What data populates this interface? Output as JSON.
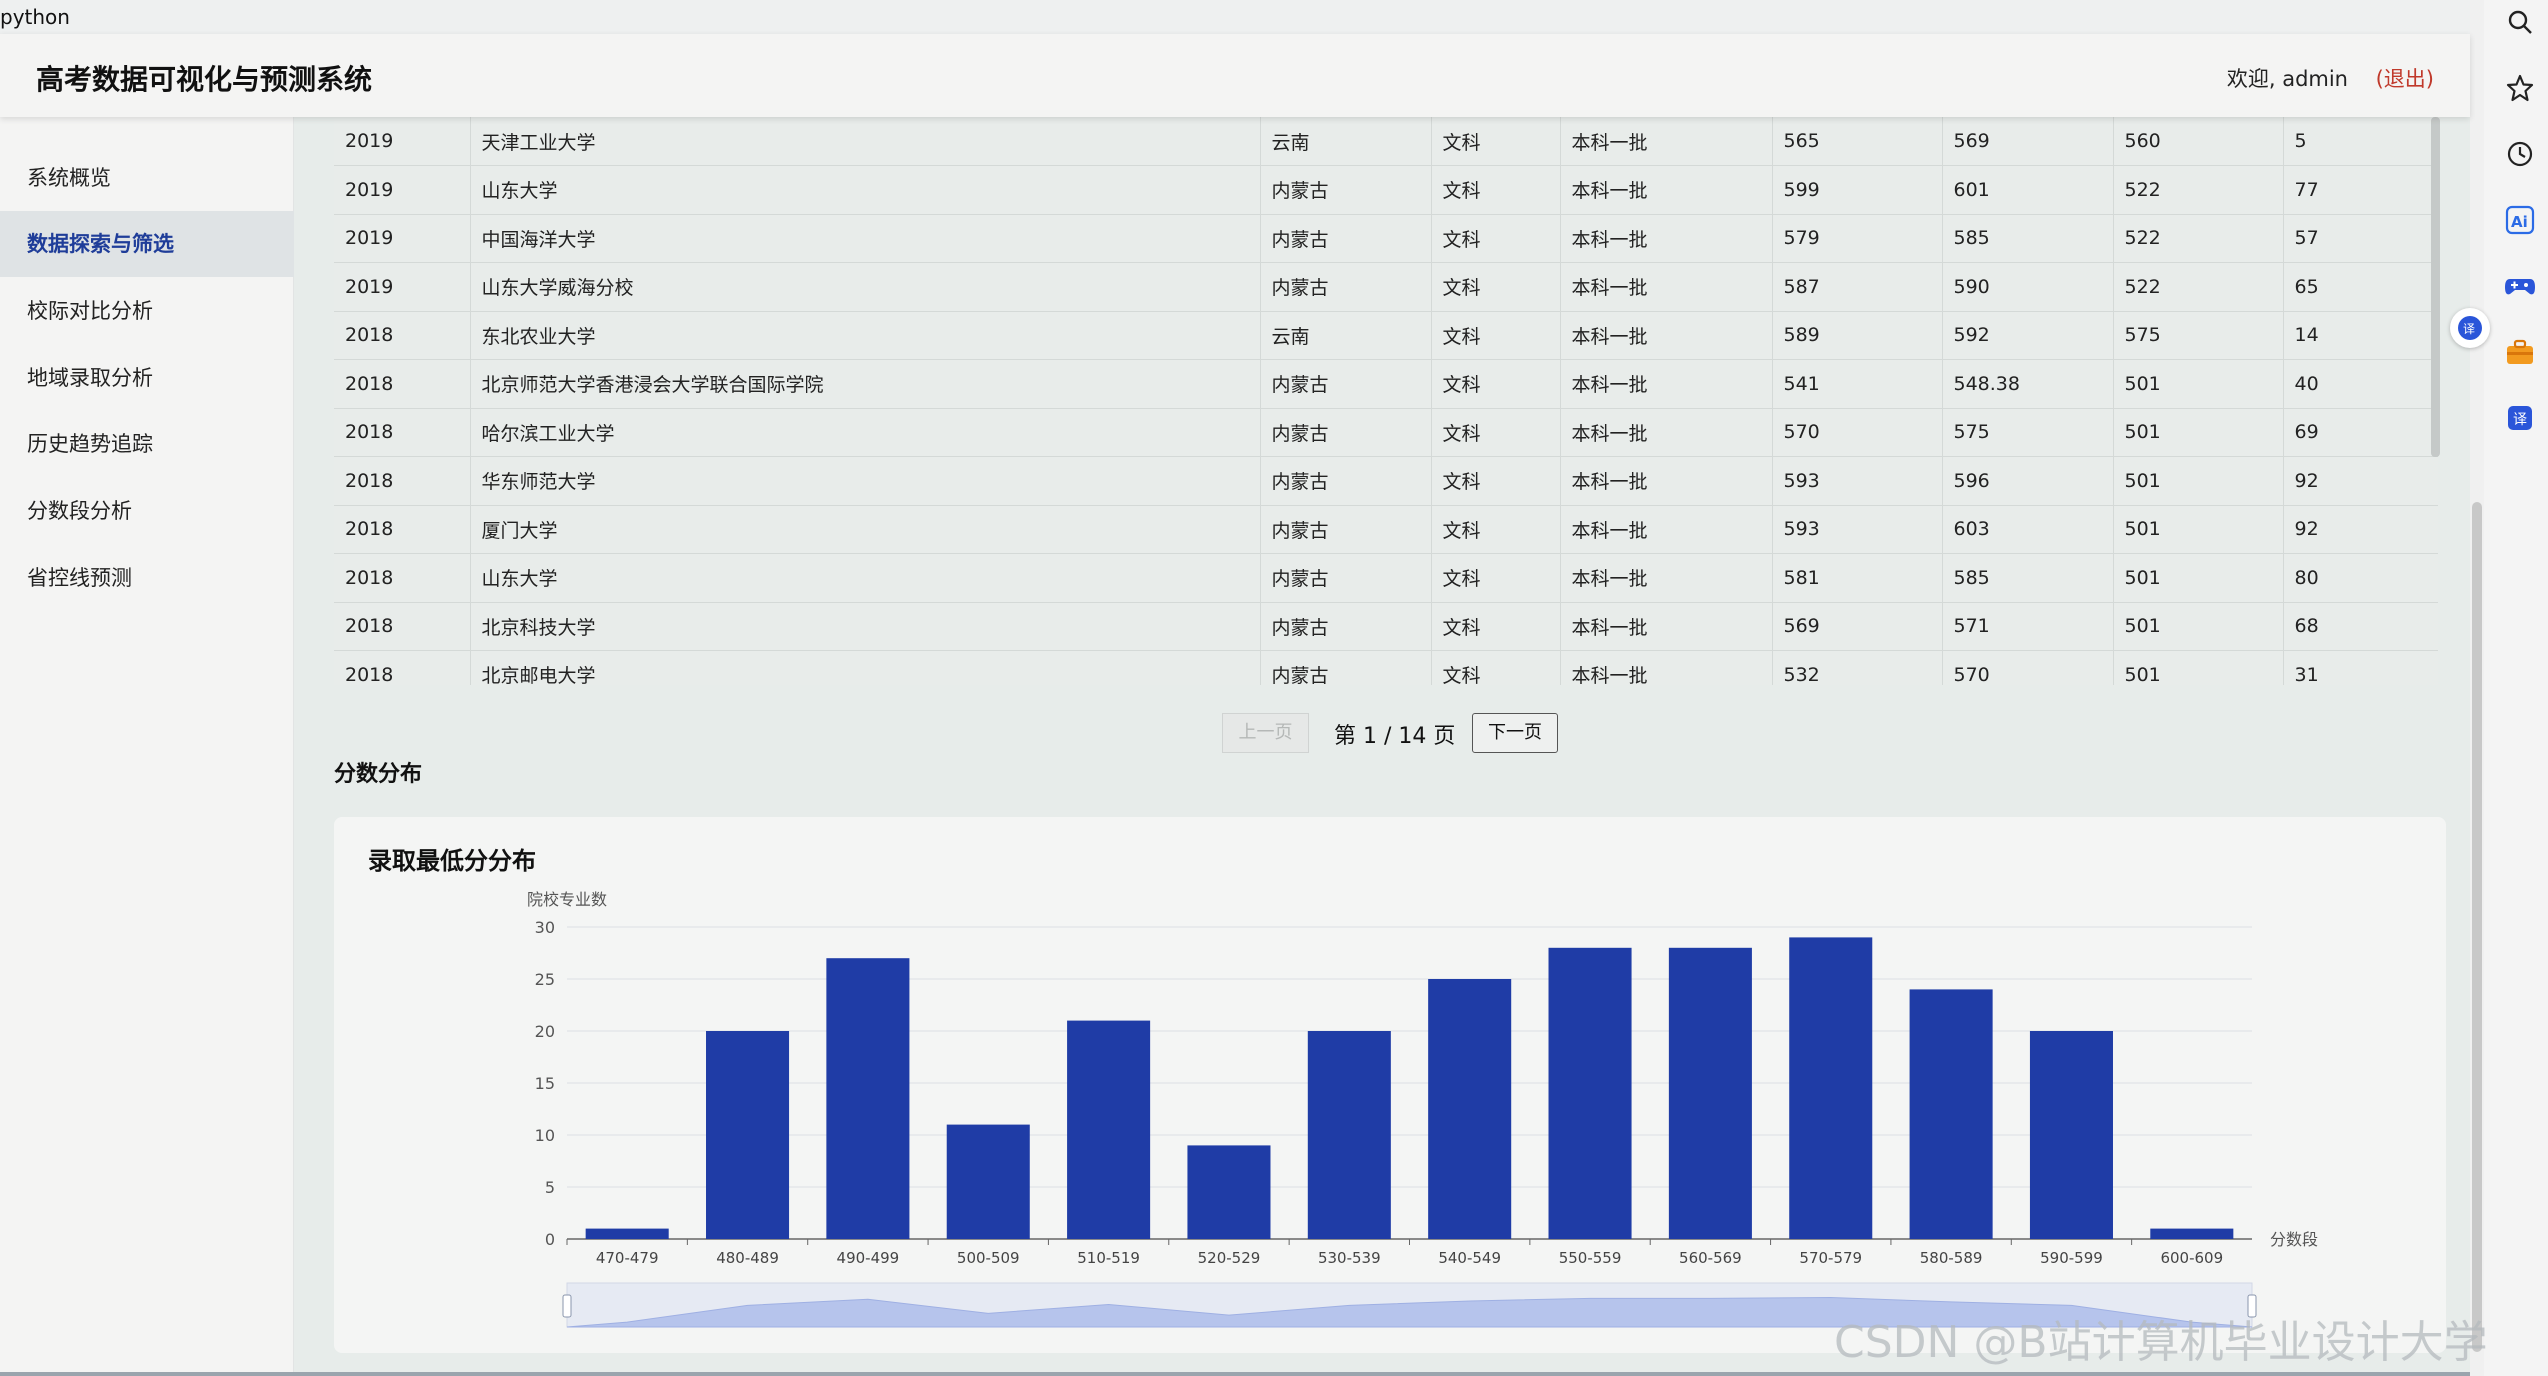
{
  "window": {
    "title": "python"
  },
  "header": {
    "title": "高考数据可视化与预测系统",
    "welcome": "欢迎, admin",
    "logout": "(退出)"
  },
  "sidebar": {
    "items": [
      {
        "label": "系统概览",
        "active": false
      },
      {
        "label": "数据探索与筛选",
        "active": true
      },
      {
        "label": "校际对比分析",
        "active": false
      },
      {
        "label": "地域录取分析",
        "active": false
      },
      {
        "label": "历史趋势追踪",
        "active": false
      },
      {
        "label": "分数段分析",
        "active": false
      },
      {
        "label": "省控线预测",
        "active": false
      }
    ]
  },
  "table": {
    "rows": [
      [
        "2019",
        "天津工业大学",
        "云南",
        "文科",
        "本科一批",
        "565",
        "569",
        "560",
        "5"
      ],
      [
        "2019",
        "山东大学",
        "内蒙古",
        "文科",
        "本科一批",
        "599",
        "601",
        "522",
        "77"
      ],
      [
        "2019",
        "中国海洋大学",
        "内蒙古",
        "文科",
        "本科一批",
        "579",
        "585",
        "522",
        "57"
      ],
      [
        "2019",
        "山东大学威海分校",
        "内蒙古",
        "文科",
        "本科一批",
        "587",
        "590",
        "522",
        "65"
      ],
      [
        "2018",
        "东北农业大学",
        "云南",
        "文科",
        "本科一批",
        "589",
        "592",
        "575",
        "14"
      ],
      [
        "2018",
        "北京师范大学香港浸会大学联合国际学院",
        "内蒙古",
        "文科",
        "本科一批",
        "541",
        "548.38",
        "501",
        "40"
      ],
      [
        "2018",
        "哈尔滨工业大学",
        "内蒙古",
        "文科",
        "本科一批",
        "570",
        "575",
        "501",
        "69"
      ],
      [
        "2018",
        "华东师范大学",
        "内蒙古",
        "文科",
        "本科一批",
        "593",
        "596",
        "501",
        "92"
      ],
      [
        "2018",
        "厦门大学",
        "内蒙古",
        "文科",
        "本科一批",
        "593",
        "603",
        "501",
        "92"
      ],
      [
        "2018",
        "山东大学",
        "内蒙古",
        "文科",
        "本科一批",
        "581",
        "585",
        "501",
        "80"
      ],
      [
        "2018",
        "北京科技大学",
        "内蒙古",
        "文科",
        "本科一批",
        "569",
        "571",
        "501",
        "68"
      ],
      [
        "2018",
        "北京邮电大学",
        "内蒙古",
        "文科",
        "本科一批",
        "532",
        "570",
        "501",
        "31"
      ]
    ]
  },
  "pagination": {
    "prev_label": "上一页",
    "page_info": "第 1 / 14 页",
    "next_label": "下一页"
  },
  "section": {
    "title": "分数分布"
  },
  "chart_data": {
    "type": "bar",
    "title": "录取最低分分布",
    "xlabel": "分数段",
    "ylabel": "院校专业数",
    "categories": [
      "470-479",
      "480-489",
      "490-499",
      "500-509",
      "510-519",
      "520-529",
      "530-539",
      "540-549",
      "550-559",
      "560-569",
      "570-579",
      "580-589",
      "590-599",
      "600-609"
    ],
    "values": [
      1,
      20,
      27,
      11,
      21,
      9,
      20,
      25,
      28,
      28,
      29,
      24,
      20,
      1
    ],
    "ylim": [
      0,
      30
    ],
    "yticks": [
      0,
      5,
      10,
      15,
      20,
      25,
      30
    ],
    "grid": true,
    "bar_color": "#1f3ca6",
    "has_data_zoom": true
  },
  "watermark": "CSDN @B站计算机毕业设计大学",
  "browser_icons": [
    "search-icon",
    "star-icon",
    "history-icon",
    "ai-icon",
    "gamepad-icon",
    "toolbox-icon",
    "translate-icon"
  ],
  "colors": {
    "accent": "#1f3ca6",
    "logout": "#c0392b",
    "active_nav": "#1f3d99"
  }
}
